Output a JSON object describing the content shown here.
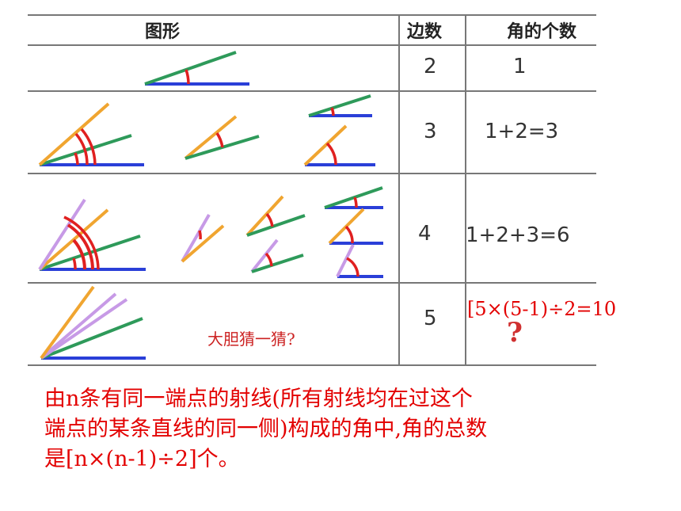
{
  "table": {
    "headers": {
      "figure": "图形",
      "sides": "边数",
      "angles": "角的个数"
    },
    "rows": [
      {
        "sides": "2",
        "angles": "1"
      },
      {
        "sides": "3",
        "angles": "1+2=3"
      },
      {
        "sides": "4",
        "angles": "1+2+3=6"
      },
      {
        "sides": "5",
        "angles": "[5×(5-1)÷2=10"
      }
    ],
    "guess_text": "大胆猜一猜?",
    "question_mark": "?"
  },
  "note": {
    "line1": "由n条有同一端点的射线(所有射线均在过这个",
    "line2": "端点的某条直线的同一侧)构成的角中,角的总数",
    "line3": "是[n×(n-1)÷2]个。"
  },
  "colors": {
    "blue": "#2a3fd8",
    "green": "#2e9a5a",
    "orange": "#f0a530",
    "purple": "#c79ae6",
    "red_arc": "#e02020",
    "red_text": "#e30000"
  }
}
